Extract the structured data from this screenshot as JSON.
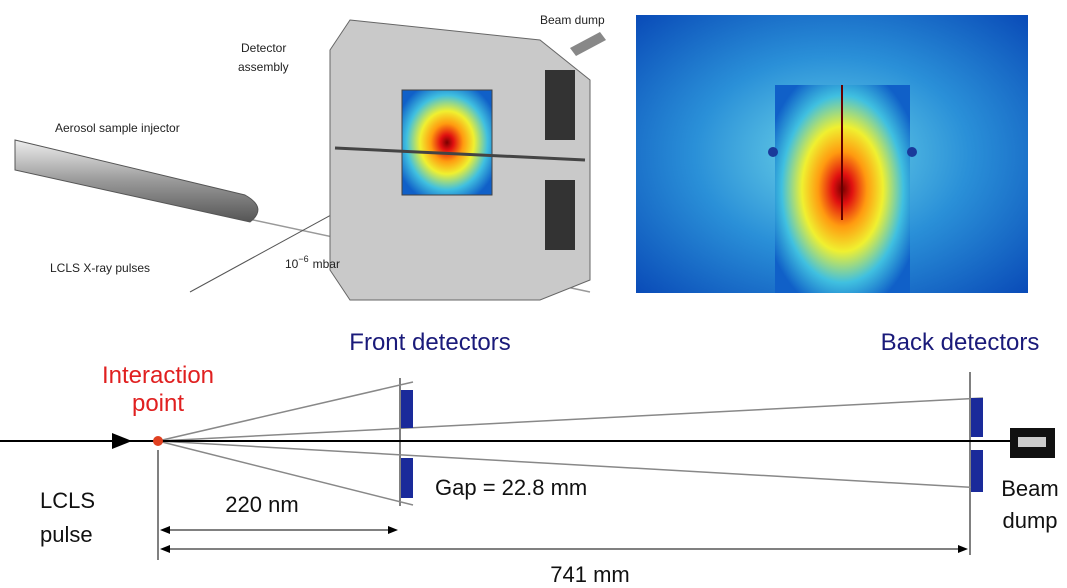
{
  "photo_labels": {
    "beam_dump": "Beam dump",
    "detector_assembly": [
      "Detector",
      "assembly"
    ],
    "injector": "Aerosol sample injector",
    "xray_pulses": "LCLS X-ray pulses",
    "pressure": {
      "base": "10",
      "exponent": "−6",
      "unit": "mbar"
    }
  },
  "schematic": {
    "front_detectors": "Front detectors",
    "back_detectors": "Back detectors",
    "interaction_point": [
      "Interaction",
      "point"
    ],
    "pulse": [
      "LCLS",
      "pulse"
    ],
    "front_distance": "220 nm",
    "gap": "Gap = 22.8 mm",
    "total_distance": "741 mm",
    "beam_dump": [
      "Beam",
      "dump"
    ]
  }
}
